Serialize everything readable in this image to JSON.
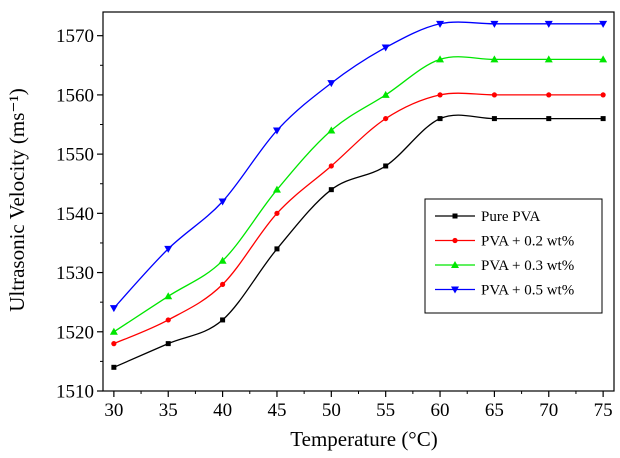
{
  "chart_data": {
    "type": "line",
    "xlabel": "Temperature (°C)",
    "ylabel": "Ultrasonic Velocity (ms⁻¹)",
    "xlim": [
      29,
      76
    ],
    "ylim": [
      1510,
      1574
    ],
    "x_ticks": [
      "30",
      "35",
      "40",
      "45",
      "50",
      "55",
      "60",
      "65",
      "70",
      "75"
    ],
    "y_ticks": [
      "1510",
      "1520",
      "1530",
      "1540",
      "1550",
      "1560",
      "1570"
    ],
    "grid": false,
    "legend_position": "right",
    "x": [
      30,
      35,
      40,
      45,
      50,
      55,
      60,
      65,
      70,
      75
    ],
    "series": [
      {
        "name": "Pure PVA",
        "marker": "square",
        "color": "#000000",
        "values": [
          1514,
          1518,
          1522,
          1534,
          1544,
          1548,
          1556,
          1556,
          1556,
          1556
        ]
      },
      {
        "name": "PVA + 0.2 wt%",
        "marker": "circle",
        "color": "#ff0000",
        "values": [
          1518,
          1522,
          1528,
          1540,
          1548,
          1556,
          1560,
          1560,
          1560,
          1560
        ]
      },
      {
        "name": "PVA + 0.3 wt%",
        "marker": "triangle-up",
        "color": "#00e600",
        "values": [
          1520,
          1526,
          1532,
          1544,
          1554,
          1560,
          1566,
          1566,
          1566,
          1566
        ]
      },
      {
        "name": "PVA + 0.5 wt%",
        "marker": "triangle-down",
        "color": "#0000ff",
        "values": [
          1524,
          1534,
          1542,
          1554,
          1562,
          1568,
          1572,
          1572,
          1572,
          1572
        ]
      }
    ]
  }
}
